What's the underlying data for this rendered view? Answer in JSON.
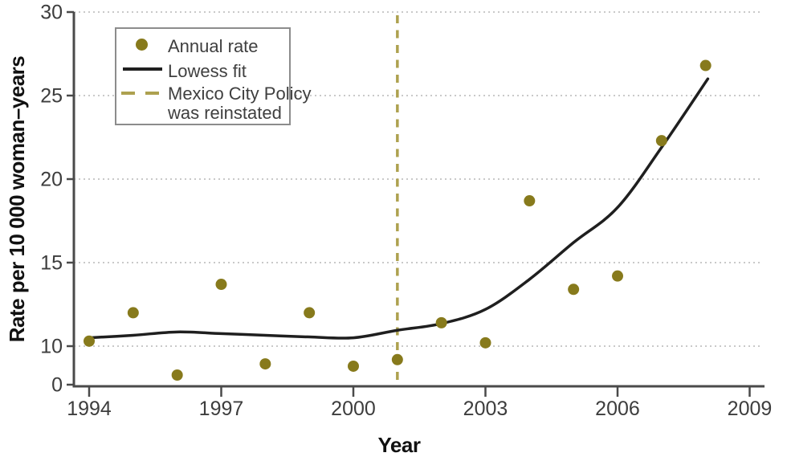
{
  "chart_data": {
    "type": "scatter",
    "title": "",
    "xlabel": "Year",
    "ylabel": "Rate per 10 000 woman–years",
    "x_ticks": [
      1994,
      1997,
      2000,
      2003,
      2006,
      2009
    ],
    "y_ticks": [
      0,
      10,
      15,
      20,
      25,
      30
    ],
    "xlim": [
      1993.65,
      2009.35
    ],
    "ylim": [
      0,
      30
    ],
    "y_axis_break": "y-axis is compressed below 10: the 0-10 span is drawn much shorter (scale break) than the 5-unit intervals above 10",
    "grid": "light dotted horizontal gridlines at y = 10, 15, 20, 25, 30; no vertical grid",
    "legend_position": "top-left inside plot area, boxed",
    "colors": {
      "point": "#877A1C",
      "lowess": "#1f1f1f",
      "policy_line": "#ADA14F",
      "grid": "#c9c9c9",
      "axis": "#4a4a4a",
      "tick_text": "#3d3d3d",
      "title_text": "#111111",
      "legend_border": "#8c8c8c"
    },
    "series": [
      {
        "name": "Annual rate",
        "type": "scatter",
        "x": [
          1994,
          1995,
          1996,
          1997,
          1998,
          1999,
          2000,
          2001,
          2002,
          2003,
          2004,
          2005,
          2006,
          2007,
          2008
        ],
        "y": [
          10.3,
          12.0,
          2.5,
          13.7,
          5.4,
          12.0,
          4.8,
          6.5,
          11.4,
          10.2,
          18.7,
          13.4,
          14.2,
          22.3,
          26.8
        ]
      },
      {
        "name": "Lowess fit",
        "type": "line",
        "x": [
          1994,
          1995,
          1996,
          1997,
          1998,
          1999,
          2000,
          2001,
          2002,
          2003,
          2004,
          2005,
          2006,
          2007,
          2008.05
        ],
        "y": [
          10.5,
          10.65,
          10.85,
          10.75,
          10.65,
          10.55,
          10.5,
          10.95,
          11.35,
          12.2,
          14.0,
          16.2,
          18.3,
          21.9,
          26.0
        ]
      },
      {
        "name": "Mexico City Policy was reinstated",
        "type": "vline",
        "x": 2001
      }
    ],
    "legend": {
      "items": [
        {
          "label": "Annual rate"
        },
        {
          "label": "Lowess fit"
        },
        {
          "label": "Mexico City Policy",
          "label_line2": "was reinstated"
        }
      ]
    }
  }
}
